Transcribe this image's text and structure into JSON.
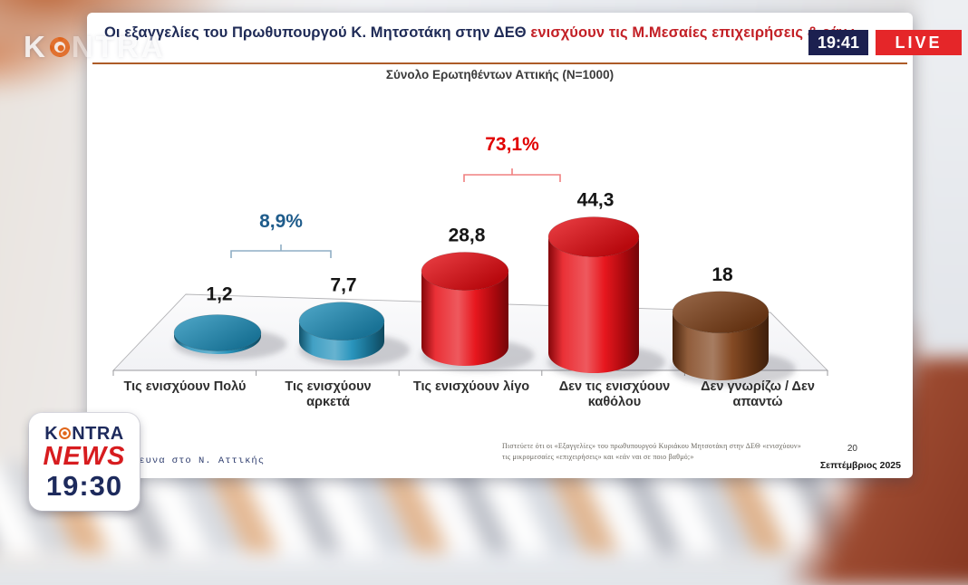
{
  "ticker": {
    "headline_dark": "Οι εξαγγελίες του Πρωθυπουργού Κ. Μητσοτάκη στην ΔΕΘ",
    "headline_red": "ενισχύουν τις Μ.Μεσαίες επιχειρήσεις & εάν ναι σε ποιο βαθμό;",
    "time": "19:41",
    "live": "LIVE",
    "time_bg": "#1c2050",
    "live_bg": "#e52629"
  },
  "watermark": {
    "k": "K",
    "rest": "NTRA"
  },
  "logo": {
    "k": "K",
    "rest": "NTRA",
    "news": "NEWS",
    "time": "19:30"
  },
  "chart": {
    "subtitle": "Σύνολο Ερωτηθέντων Αττικής (N=1000)",
    "footnote_line1": "Πιστεύετε ότι οι «Εξαγγελίες» του πρωθυπουργού Κυριάκου Μητσοτάκη στην ΔΕΘ «ενισχύουν»",
    "footnote_line2": "τις μικρομεσαίες «επιχειρήσεις» και «εάν ναι σε ποιο βαθμό;»",
    "page_number": "20",
    "date": "Σεπτέμβριος 2025",
    "side_note": "ρευνα στο Ν. Αττικής"
  },
  "chart_data": {
    "type": "bar",
    "style": "3d-cylinder",
    "title": "Σύνολο Ερωτηθέντων Αττικής (N=1000)",
    "categories": [
      "Τις ενισχύουν Πολύ",
      "Τις ενισχύουν αρκετά",
      "Τις ενισχύουν λίγο",
      "Δεν τις ενισχύουν καθόλου",
      "Δεν γνωρίζω / Δεν απαντώ"
    ],
    "category_lines": [
      [
        "Τις ενισχύουν Πολύ"
      ],
      [
        "Τις ενισχύουν",
        "αρκετά"
      ],
      [
        "Τις ενισχύουν λίγο"
      ],
      [
        "Δεν τις ενισχύουν",
        "καθόλου"
      ],
      [
        "Δεν γνωρίζω / Δεν",
        "απαντώ"
      ]
    ],
    "values": [
      1.2,
      7.7,
      28.8,
      44.3,
      18
    ],
    "value_labels": [
      "1,2",
      "7,7",
      "28,8",
      "44,3",
      "18"
    ],
    "bar_colors": [
      "#1f8fba",
      "#1f8fba",
      "#e60b12",
      "#e60b12",
      "#7d4018"
    ],
    "value_label_color": "#151515",
    "category_label_color": "#2f2f2f",
    "annotations": [
      {
        "label": "8,9%",
        "color": "#1f5c8b",
        "spans": [
          0,
          1
        ]
      },
      {
        "label": "73,1%",
        "color": "#e10000",
        "spans": [
          2,
          3
        ]
      }
    ],
    "xlabel": "",
    "ylabel": "",
    "ylim": [
      0,
      50
    ],
    "grid": false,
    "legend": false
  }
}
